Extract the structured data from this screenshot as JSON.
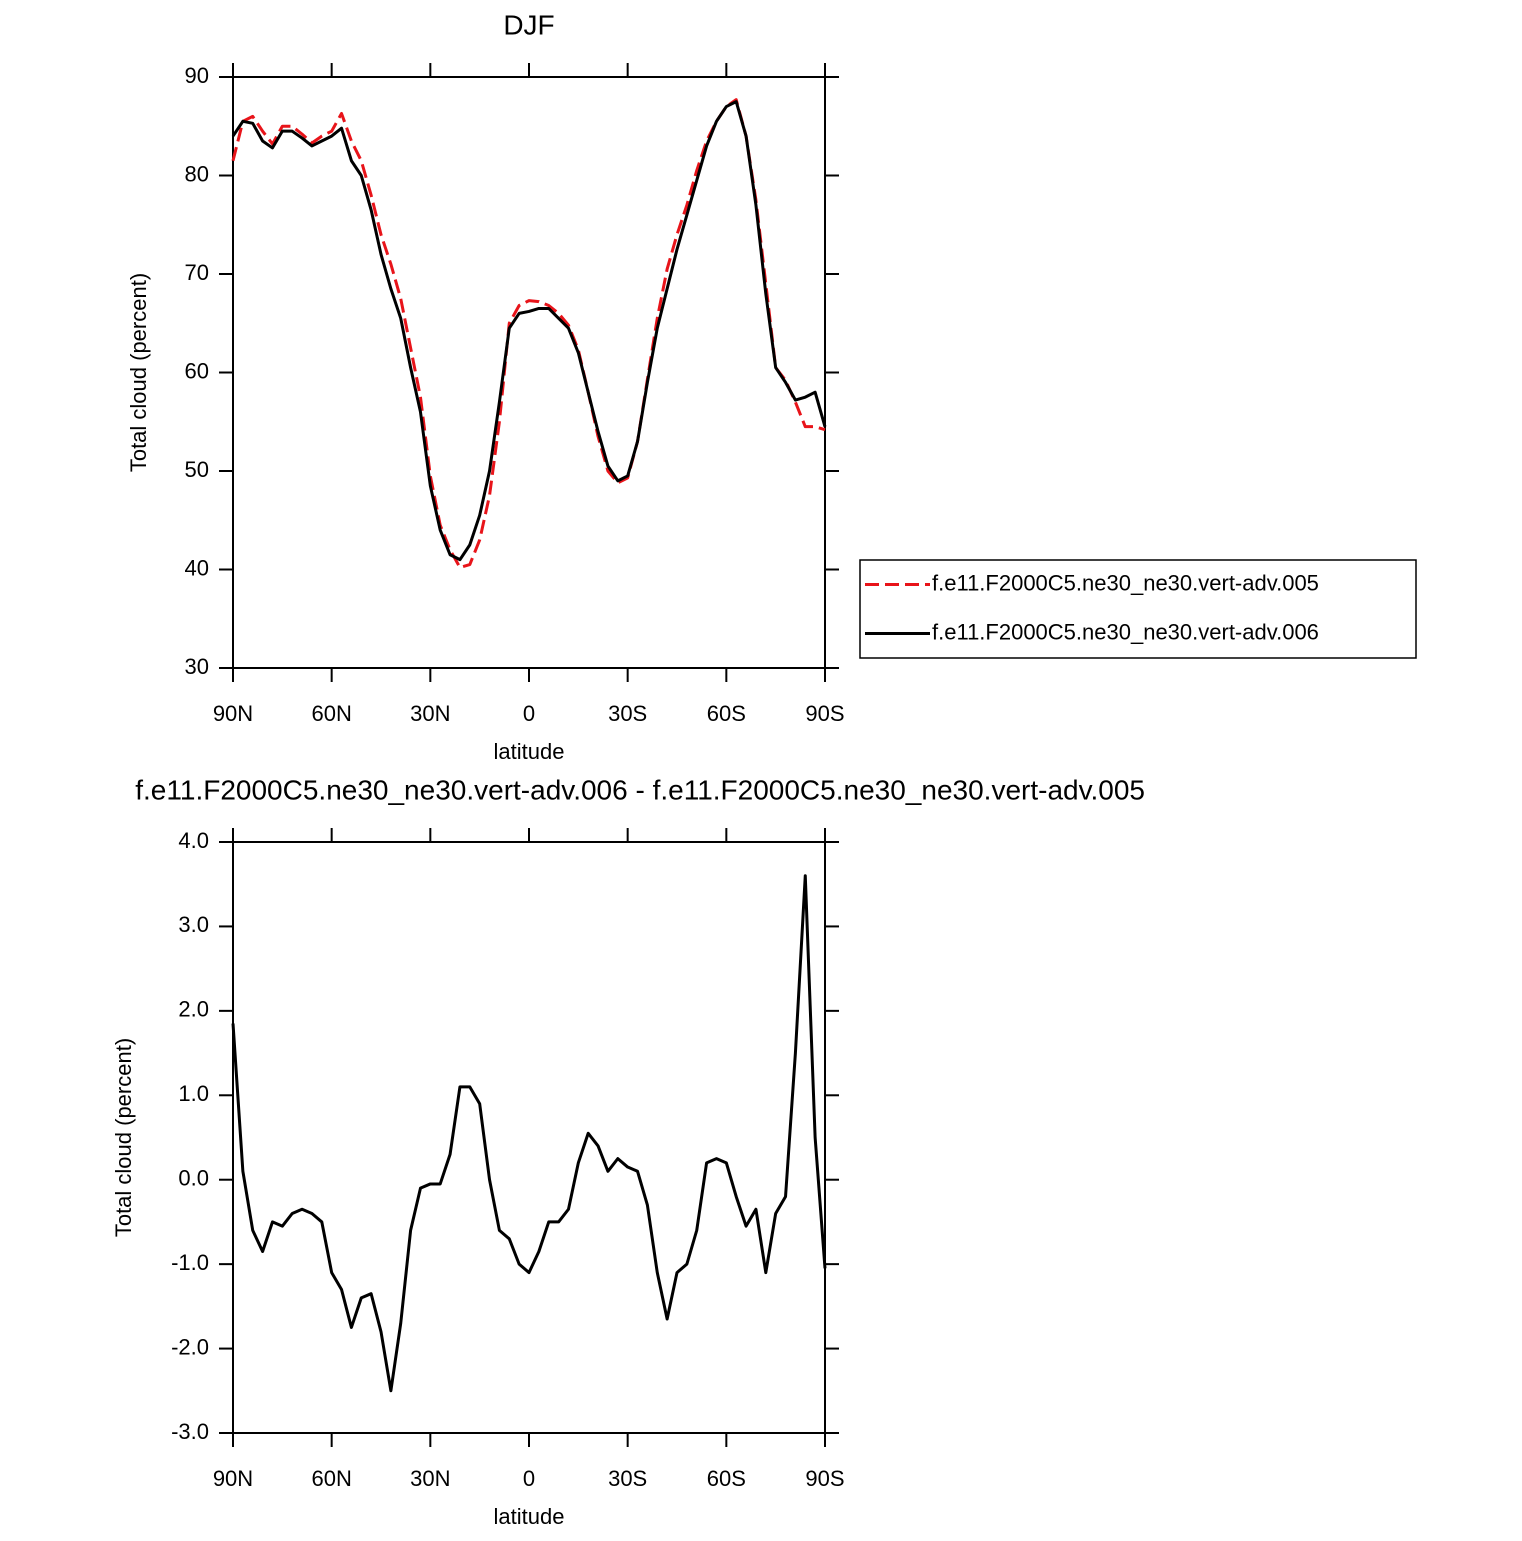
{
  "chart_data": [
    {
      "type": "line",
      "title": "DJF",
      "xlabel": "latitude",
      "ylabel": "Total cloud (percent)",
      "x": [
        90,
        87,
        84,
        81,
        78,
        75,
        72,
        69,
        66,
        63,
        60,
        57,
        54,
        51,
        48,
        45,
        42,
        39,
        36,
        33,
        30,
        27,
        24,
        21,
        18,
        15,
        12,
        9,
        6,
        3,
        0,
        -3,
        -6,
        -9,
        -12,
        -15,
        -18,
        -21,
        -24,
        -27,
        -30,
        -33,
        -36,
        -39,
        -42,
        -45,
        -48,
        -51,
        -54,
        -57,
        -60,
        -63,
        -66,
        -69,
        -72,
        -75,
        -78,
        -81,
        -84,
        -87,
        -90
      ],
      "xlim": [
        90,
        -90
      ],
      "xticks": [
        {
          "value": 90,
          "label": "90N"
        },
        {
          "value": 60,
          "label": "60N"
        },
        {
          "value": 30,
          "label": "30N"
        },
        0,
        {
          "value": -30,
          "label": "30S"
        },
        {
          "value": -60,
          "label": "60S"
        },
        {
          "value": -90,
          "label": "90S"
        }
      ],
      "ylim": [
        30,
        90
      ],
      "yticks": [
        30,
        40,
        50,
        60,
        70,
        80,
        90
      ],
      "legend": "right",
      "series": [
        {
          "name": "f.e11.F2000C5.ne30_ne30.vert-adv.005",
          "color": "#e8141a",
          "line_style": "dashed",
          "values": [
            81.5,
            85.5,
            86,
            84.5,
            83.2,
            85,
            85,
            84.2,
            83.3,
            84,
            84.5,
            86.3,
            83.5,
            81.5,
            78,
            74,
            71,
            67.5,
            62.5,
            57.5,
            49.5,
            44.5,
            42,
            40.2,
            40.5,
            43,
            47.5,
            55,
            65,
            66.8,
            67.3,
            67.2,
            66.8,
            66,
            64.8,
            62.3,
            58,
            53.5,
            50,
            48.8,
            49.3,
            53,
            59.3,
            65.5,
            70.5,
            74,
            77,
            80.5,
            83.5,
            85.5,
            87,
            87.7,
            84,
            77.5,
            69,
            60.5,
            59.2,
            57,
            54.5,
            54.5,
            54.2
          ]
        },
        {
          "name": "f.e11.F2000C5.ne30_ne30.vert-adv.006",
          "color": "#000000",
          "line_style": "solid",
          "values": [
            84,
            85.5,
            85.3,
            83.5,
            82.8,
            84.5,
            84.5,
            83.8,
            83,
            83.5,
            84,
            84.8,
            81.5,
            80,
            76.5,
            72,
            68.5,
            65.5,
            60.5,
            56,
            48.5,
            44,
            41.5,
            41,
            42.5,
            45.5,
            50,
            57,
            64.5,
            66,
            66.2,
            66.5,
            66.5,
            65.5,
            64.5,
            62,
            58,
            54,
            50.5,
            49,
            49.5,
            53,
            59,
            64.5,
            68.5,
            72.5,
            76,
            79.5,
            83,
            85.5,
            87,
            87.5,
            84,
            77,
            68,
            60.5,
            59,
            57.2,
            57.5,
            58,
            54.5
          ]
        }
      ]
    },
    {
      "type": "line",
      "title": "f.e11.F2000C5.ne30_ne30.vert-adv.006 - f.e11.F2000C5.ne30_ne30.vert-adv.005",
      "xlabel": "latitude",
      "ylabel": "Total cloud (percent)",
      "x": [
        90,
        87,
        84,
        81,
        78,
        75,
        72,
        69,
        66,
        63,
        60,
        57,
        54,
        51,
        48,
        45,
        42,
        39,
        36,
        33,
        30,
        27,
        24,
        21,
        18,
        15,
        12,
        9,
        6,
        3,
        0,
        -3,
        -6,
        -9,
        -12,
        -15,
        -18,
        -21,
        -24,
        -27,
        -30,
        -33,
        -36,
        -39,
        -42,
        -45,
        -48,
        -51,
        -54,
        -57,
        -60,
        -63,
        -66,
        -69,
        -72,
        -75,
        -78,
        -81,
        -84,
        -87,
        -90
      ],
      "xlim": [
        90,
        -90
      ],
      "xticks": [
        {
          "value": 90,
          "label": "90N"
        },
        {
          "value": 60,
          "label": "60N"
        },
        {
          "value": 30,
          "label": "30N"
        },
        0,
        {
          "value": -30,
          "label": "30S"
        },
        {
          "value": -60,
          "label": "60S"
        },
        {
          "value": -90,
          "label": "90S"
        }
      ],
      "ylim": [
        -3,
        4
      ],
      "yticks": [
        {
          "value": -3,
          "label": "-3.0"
        },
        {
          "value": -2,
          "label": "-2.0"
        },
        {
          "value": -1,
          "label": "-1.0"
        },
        {
          "value": 0,
          "label": "0.0"
        },
        {
          "value": 1,
          "label": "1.0"
        },
        {
          "value": 2,
          "label": "2.0"
        },
        {
          "value": 3,
          "label": "3.0"
        },
        {
          "value": 4,
          "label": "4.0"
        }
      ],
      "color": "#000000",
      "values": [
        1.85,
        0.1,
        -0.6,
        -0.85,
        -0.5,
        -0.55,
        -0.4,
        -0.35,
        -0.4,
        -0.5,
        -1.1,
        -1.3,
        -1.75,
        -1.4,
        -1.35,
        -1.8,
        -2.5,
        -1.7,
        -0.6,
        -0.1,
        -0.05,
        -0.05,
        0.3,
        1.1,
        1.1,
        0.9,
        0,
        -0.6,
        -0.7,
        -1,
        -1.1,
        -0.85,
        -0.5,
        -0.5,
        -0.35,
        0.2,
        0.55,
        0.4,
        0.1,
        0.25,
        0.15,
        0.1,
        -0.3,
        -1.1,
        -1.65,
        -1.1,
        -1,
        -0.6,
        0.2,
        0.25,
        0.2,
        -0.2,
        -0.55,
        -0.35,
        -1.1,
        -0.4,
        -0.2,
        1.5,
        3.6,
        0.5,
        -1.05
      ]
    }
  ]
}
